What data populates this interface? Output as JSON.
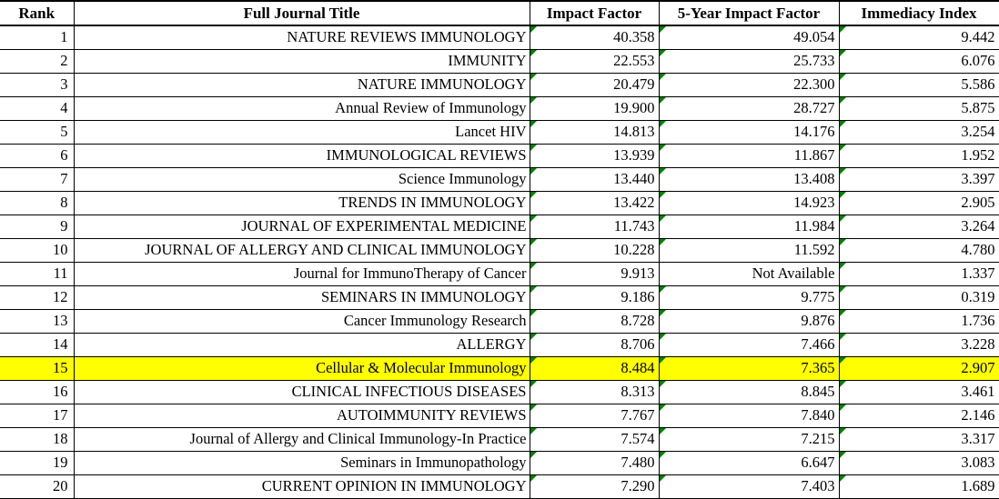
{
  "table": {
    "columns": [
      "Rank",
      "Full Journal Title",
      "Impact Factor",
      "5-Year Impact Factor",
      "Immediacy Index"
    ],
    "highlight_color": "#FFFF00",
    "error_marker_color": "#008000",
    "rows": [
      {
        "rank": "1",
        "title": "NATURE REVIEWS IMMUNOLOGY",
        "impact_factor": "40.358",
        "five_year_impact_factor": "49.054",
        "immediacy_index": "9.442",
        "highlighted": false,
        "error_markers": [
          true,
          true,
          true
        ]
      },
      {
        "rank": "2",
        "title": "IMMUNITY",
        "impact_factor": "22.553",
        "five_year_impact_factor": "25.733",
        "immediacy_index": "6.076",
        "highlighted": false,
        "error_markers": [
          true,
          true,
          true
        ]
      },
      {
        "rank": "3",
        "title": "NATURE IMMUNOLOGY",
        "impact_factor": "20.479",
        "five_year_impact_factor": "22.300",
        "immediacy_index": "5.586",
        "highlighted": false,
        "error_markers": [
          true,
          true,
          true
        ]
      },
      {
        "rank": "4",
        "title": "Annual Review of Immunology",
        "impact_factor": "19.900",
        "five_year_impact_factor": "28.727",
        "immediacy_index": "5.875",
        "highlighted": false,
        "error_markers": [
          true,
          true,
          true
        ]
      },
      {
        "rank": "5",
        "title": "Lancet HIV",
        "impact_factor": "14.813",
        "five_year_impact_factor": "14.176",
        "immediacy_index": "3.254",
        "highlighted": false,
        "error_markers": [
          true,
          true,
          true
        ]
      },
      {
        "rank": "6",
        "title": "IMMUNOLOGICAL REVIEWS",
        "impact_factor": "13.939",
        "five_year_impact_factor": "11.867",
        "immediacy_index": "1.952",
        "highlighted": false,
        "error_markers": [
          true,
          true,
          true
        ]
      },
      {
        "rank": "7",
        "title": "Science Immunology",
        "impact_factor": "13.440",
        "five_year_impact_factor": "13.408",
        "immediacy_index": "3.397",
        "highlighted": false,
        "error_markers": [
          true,
          true,
          true
        ]
      },
      {
        "rank": "8",
        "title": "TRENDS IN IMMUNOLOGY",
        "impact_factor": "13.422",
        "five_year_impact_factor": "14.923",
        "immediacy_index": "2.905",
        "highlighted": false,
        "error_markers": [
          true,
          true,
          true
        ]
      },
      {
        "rank": "9",
        "title": "JOURNAL OF EXPERIMENTAL MEDICINE",
        "impact_factor": "11.743",
        "five_year_impact_factor": "11.984",
        "immediacy_index": "3.264",
        "highlighted": false,
        "error_markers": [
          true,
          true,
          true
        ]
      },
      {
        "rank": "10",
        "title": "JOURNAL OF ALLERGY AND CLINICAL IMMUNOLOGY",
        "impact_factor": "10.228",
        "five_year_impact_factor": "11.592",
        "immediacy_index": "4.780",
        "highlighted": false,
        "error_markers": [
          true,
          true,
          true
        ]
      },
      {
        "rank": "11",
        "title": "Journal for ImmunoTherapy of Cancer",
        "impact_factor": "9.913",
        "five_year_impact_factor": "Not Available",
        "immediacy_index": "1.337",
        "highlighted": false,
        "error_markers": [
          true,
          false,
          true
        ]
      },
      {
        "rank": "12",
        "title": "SEMINARS IN IMMUNOLOGY",
        "impact_factor": "9.186",
        "five_year_impact_factor": "9.775",
        "immediacy_index": "0.319",
        "highlighted": false,
        "error_markers": [
          true,
          true,
          true
        ]
      },
      {
        "rank": "13",
        "title": "Cancer Immunology Research",
        "impact_factor": "8.728",
        "five_year_impact_factor": "9.876",
        "immediacy_index": "1.736",
        "highlighted": false,
        "error_markers": [
          true,
          true,
          true
        ]
      },
      {
        "rank": "14",
        "title": "ALLERGY",
        "impact_factor": "8.706",
        "five_year_impact_factor": "7.466",
        "immediacy_index": "3.228",
        "highlighted": false,
        "error_markers": [
          true,
          true,
          true
        ]
      },
      {
        "rank": "15",
        "title": "Cellular & Molecular Immunology",
        "impact_factor": "8.484",
        "five_year_impact_factor": "7.365",
        "immediacy_index": "2.907",
        "highlighted": true,
        "error_markers": [
          true,
          true,
          true
        ]
      },
      {
        "rank": "16",
        "title": "CLINICAL INFECTIOUS DISEASES",
        "impact_factor": "8.313",
        "five_year_impact_factor": "8.845",
        "immediacy_index": "3.461",
        "highlighted": false,
        "error_markers": [
          true,
          true,
          true
        ]
      },
      {
        "rank": "17",
        "title": "AUTOIMMUNITY REVIEWS",
        "impact_factor": "7.767",
        "five_year_impact_factor": "7.840",
        "immediacy_index": "2.146",
        "highlighted": false,
        "error_markers": [
          true,
          true,
          true
        ]
      },
      {
        "rank": "18",
        "title": "Journal of Allergy and Clinical Immunology-In Practice",
        "impact_factor": "7.574",
        "five_year_impact_factor": "7.215",
        "immediacy_index": "3.317",
        "highlighted": false,
        "error_markers": [
          true,
          true,
          true
        ]
      },
      {
        "rank": "19",
        "title": "Seminars in Immunopathology",
        "impact_factor": "7.480",
        "five_year_impact_factor": "6.647",
        "immediacy_index": "3.083",
        "highlighted": false,
        "error_markers": [
          true,
          true,
          true
        ]
      },
      {
        "rank": "20",
        "title": "CURRENT OPINION IN IMMUNOLOGY",
        "impact_factor": "7.290",
        "five_year_impact_factor": "7.403",
        "immediacy_index": "1.689",
        "highlighted": false,
        "error_markers": [
          true,
          true,
          true
        ]
      }
    ]
  }
}
